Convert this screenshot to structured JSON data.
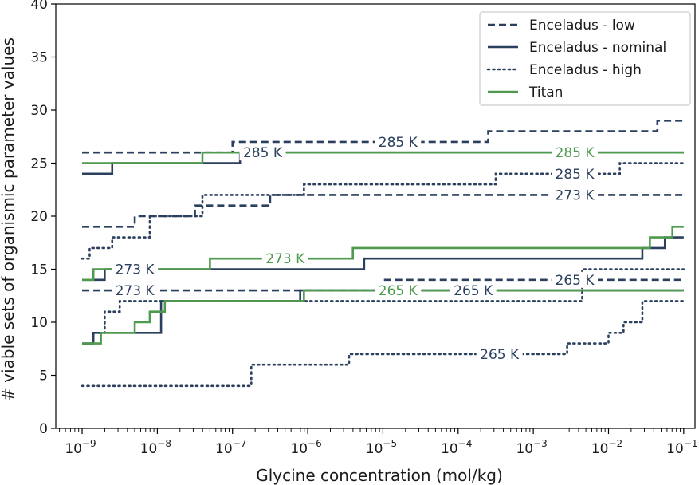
{
  "chart_data": {
    "type": "line",
    "step": true,
    "xlabel": "Glycine concentration (mol/kg)",
    "ylabel": "# viable sets of organismic parameter values",
    "xscale": "log",
    "xlim": [
      -9.35,
      -0.85
    ],
    "ylim": [
      0,
      40
    ],
    "x_ticks": [
      {
        "exp": -9,
        "label": "10−9"
      },
      {
        "exp": -8,
        "label": "10−8"
      },
      {
        "exp": -7,
        "label": "10−7"
      },
      {
        "exp": -6,
        "label": "10−6"
      },
      {
        "exp": -5,
        "label": "10−5"
      },
      {
        "exp": -4,
        "label": "10−4"
      },
      {
        "exp": -3,
        "label": "10−3"
      },
      {
        "exp": -2,
        "label": "10−2"
      },
      {
        "exp": -1,
        "label": "10−1"
      }
    ],
    "y_ticks": [
      0,
      5,
      10,
      15,
      20,
      25,
      30,
      35,
      40
    ],
    "grid": false,
    "legend_position": "top-right",
    "colors": {
      "enceladus": "#2b3f5e",
      "titan": "#4e9a4e"
    },
    "legend": [
      {
        "label": "Enceladus - low",
        "color": "#2b3f5e",
        "dash": "dashed"
      },
      {
        "label": "Enceladus - nominal",
        "color": "#2b3f5e",
        "dash": "solid"
      },
      {
        "label": "Enceladus - high",
        "color": "#2b3f5e",
        "dash": "dotted"
      },
      {
        "label": "Titan",
        "color": "#4e9a4e",
        "dash": "solid"
      }
    ],
    "series": [
      {
        "name": "Enceladus - low",
        "temperature": "285 K",
        "color": "#2b3f5e",
        "dash": "dashed",
        "x": [
          -9,
          -7,
          -3.6,
          -1.35,
          -1
        ],
        "y": [
          26,
          27,
          28,
          29,
          29
        ]
      },
      {
        "name": "Enceladus - low",
        "temperature": "273 K",
        "color": "#2b3f5e",
        "dash": "dashed",
        "x": [
          -9,
          -8.7,
          -8.3,
          -7.7,
          -7.5,
          -6.5,
          -1
        ],
        "y": [
          19,
          19,
          20,
          20,
          21,
          22,
          22
        ]
      },
      {
        "name": "Enceladus - low",
        "temperature": "265 K",
        "color": "#2b3f5e",
        "dash": "dashed",
        "x": [
          -9,
          -6,
          -5,
          -1
        ],
        "y": [
          13,
          13,
          14,
          14
        ]
      },
      {
        "name": "Enceladus - nominal",
        "temperature": "285 K",
        "color": "#2b3f5e",
        "dash": "solid",
        "x": [
          -9,
          -8.6,
          -7.35,
          -6.9,
          -1
        ],
        "y": [
          24,
          25,
          25,
          26,
          26
        ]
      },
      {
        "name": "Enceladus - nominal",
        "temperature": "273 K",
        "color": "#2b3f5e",
        "dash": "solid",
        "x": [
          -9,
          -8.7,
          -7.6,
          -5.25,
          -1.55,
          -1.25,
          -1
        ],
        "y": [
          14,
          15,
          15,
          16,
          17,
          18,
          18
        ]
      },
      {
        "name": "Enceladus - nominal",
        "temperature": "265 K",
        "color": "#2b3f5e",
        "dash": "solid",
        "x": [
          -9,
          -8.85,
          -7.95,
          -6.1,
          -1
        ],
        "y": [
          8,
          9,
          12,
          13,
          13
        ]
      },
      {
        "name": "Enceladus - high",
        "temperature": "285 K",
        "color": "#2b3f5e",
        "dash": "dotted",
        "x": [
          -9,
          -8.9,
          -8.6,
          -8.1,
          -7.4,
          -6.05,
          -4.3,
          -3.5,
          -1.85,
          -1
        ],
        "y": [
          16,
          17,
          18,
          20,
          22,
          23,
          23,
          24,
          25,
          25
        ]
      },
      {
        "name": "Enceladus - high",
        "temperature": "265 K",
        "color": "#2b3f5e",
        "dash": "dotted",
        "x": [
          -9,
          -7,
          -6.75,
          -5.45,
          -2.9,
          -2.55,
          -2.0,
          -1.8,
          -1.55,
          -1
        ],
        "y": [
          4,
          4,
          6,
          7,
          7,
          8,
          9,
          10,
          12,
          12
        ]
      },
      {
        "name": "Enceladus - high",
        "temperature": "273 K",
        "color": "#2b3f5e",
        "dash": "dotted",
        "x": [
          -8.85,
          -8.7,
          -8.5,
          -2.35,
          -1
        ],
        "y": [
          9,
          11,
          12,
          15,
          15
        ]
      },
      {
        "name": "Titan",
        "temperature": "285 K",
        "color": "#4e9a4e",
        "dash": "solid",
        "x": [
          -9,
          -7.4,
          -1
        ],
        "y": [
          25,
          26,
          26
        ]
      },
      {
        "name": "Titan",
        "temperature": "273 K",
        "color": "#4e9a4e",
        "dash": "solid",
        "x": [
          -9,
          -8.85,
          -7.3,
          -5.4,
          -1.45,
          -1.15,
          -1
        ],
        "y": [
          14,
          15,
          16,
          17,
          18,
          19,
          19
        ]
      },
      {
        "name": "Titan",
        "temperature": "265 K",
        "color": "#4e9a4e",
        "dash": "solid",
        "x": [
          -9,
          -8.75,
          -8.3,
          -8.1,
          -7.9,
          -6.05,
          -1
        ],
        "y": [
          8,
          9,
          10,
          11,
          12,
          13,
          13
        ]
      }
    ],
    "annotations": [
      {
        "text": "285 K",
        "x": -4.8,
        "y": 27,
        "color": "#2b3f5e"
      },
      {
        "text": "285 K",
        "x": -6.6,
        "y": 26,
        "color": "#2b3f5e"
      },
      {
        "text": "285 K",
        "x": -2.45,
        "y": 26,
        "color": "#4e9a4e"
      },
      {
        "text": "285 K",
        "x": -2.45,
        "y": 24,
        "color": "#2b3f5e"
      },
      {
        "text": "273 K",
        "x": -2.45,
        "y": 22,
        "color": "#2b3f5e"
      },
      {
        "text": "273 K",
        "x": -8.3,
        "y": 15,
        "color": "#2b3f5e"
      },
      {
        "text": "273 K",
        "x": -6.3,
        "y": 16,
        "color": "#4e9a4e"
      },
      {
        "text": "273 K",
        "x": -8.3,
        "y": 13,
        "color": "#2b3f5e"
      },
      {
        "text": "265 K",
        "x": -2.45,
        "y": 14,
        "color": "#2b3f5e"
      },
      {
        "text": "265 K",
        "x": -4.8,
        "y": 13,
        "color": "#4e9a4e"
      },
      {
        "text": "265 K",
        "x": -3.8,
        "y": 13,
        "color": "#2b3f5e"
      },
      {
        "text": "265 K",
        "x": -3.45,
        "y": 7,
        "color": "#2b3f5e"
      }
    ]
  }
}
